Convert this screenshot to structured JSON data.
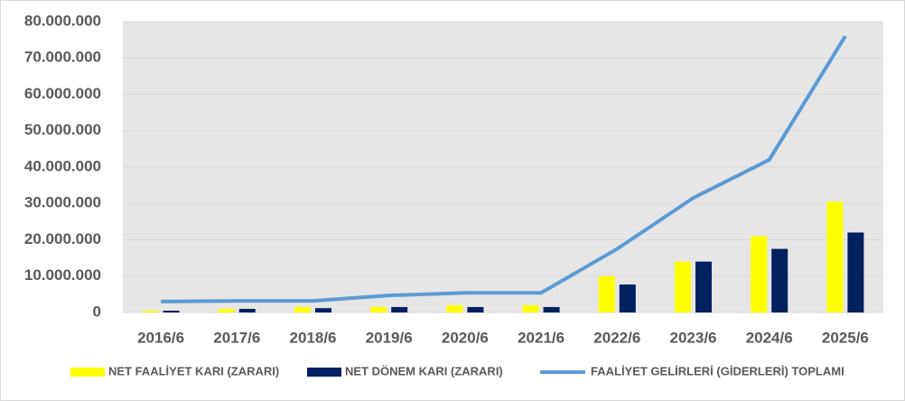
{
  "chart_data": {
    "type": "bar",
    "categories": [
      "2016/6",
      "2017/6",
      "2018/6",
      "2019/6",
      "2020/6",
      "2021/6",
      "2022/6",
      "2023/6",
      "2024/6",
      "2025/6"
    ],
    "series": [
      {
        "name": "NET FAALİYET KARI (ZARARI)",
        "type": "bar",
        "color": "#ffff00",
        "values": [
          500000,
          1000000,
          1500000,
          1500000,
          2000000,
          2000000,
          10000000,
          14000000,
          21000000,
          30500000
        ]
      },
      {
        "name": "NET DÖNEM KARI (ZARARI)",
        "type": "bar",
        "color": "#002060",
        "values": [
          500000,
          1000000,
          1200000,
          1500000,
          1500000,
          1500000,
          7700000,
          14000000,
          17500000,
          22000000
        ]
      },
      {
        "name": "FAALİYET GELİRLERİ (GİDERLERİ) TOPLAMI",
        "type": "line",
        "color": "#5b9bd5",
        "values": [
          3000000,
          3200000,
          3200000,
          4700000,
          5400000,
          5400000,
          17500000,
          31500000,
          42000000,
          76000000
        ]
      }
    ],
    "ylim": [
      0,
      80000000
    ],
    "yticks": [
      0,
      {
        "value": 10000000,
        "label": "10.000.000"
      },
      {
        "value": 20000000,
        "label": "20.000.000"
      },
      {
        "value": 30000000,
        "label": "30.000.000"
      },
      {
        "value": 40000000,
        "label": "40.000.000"
      },
      {
        "value": 50000000,
        "label": "50.000.000"
      },
      {
        "value": 60000000,
        "label": "60.000.000"
      },
      {
        "value": 70000000,
        "label": "70.000.000"
      },
      {
        "value": 80000000,
        "label": "80.000.000"
      }
    ],
    "grid": true,
    "legend": "bottom"
  }
}
